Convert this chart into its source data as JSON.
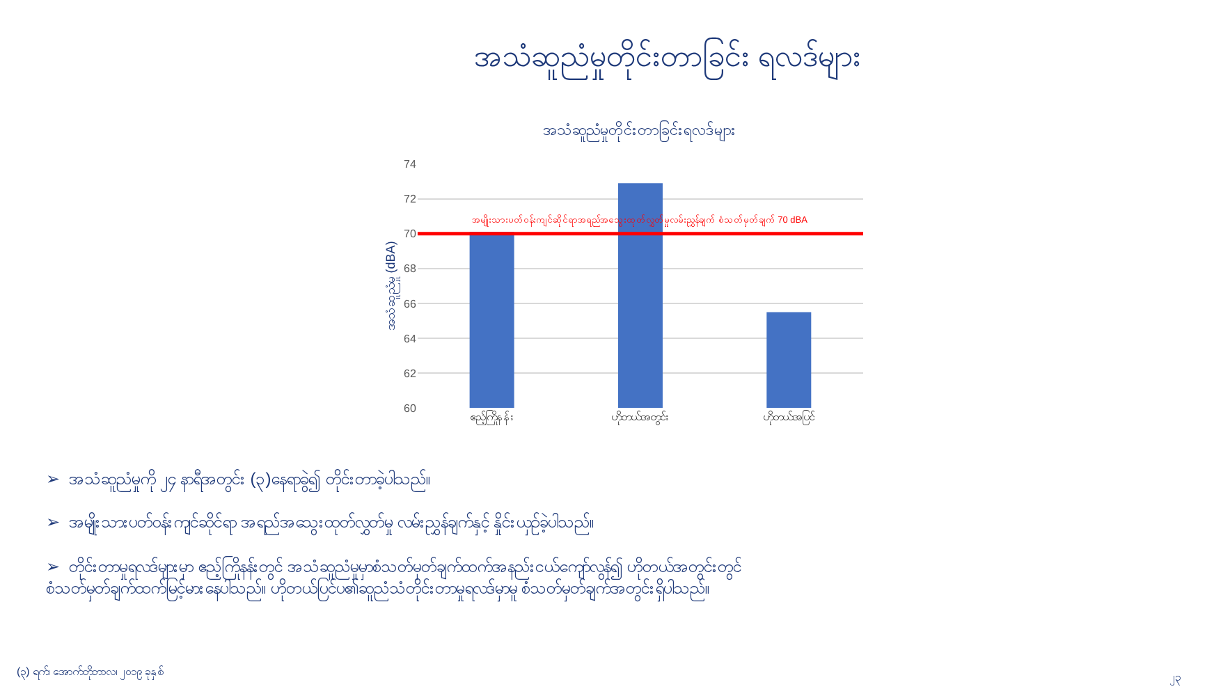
{
  "chart_data": {
    "type": "bar",
    "title": "အသံဆူညံမှုတိုင်းတာခြင်း ရလဒ်များ",
    "subtitle": "အသံဆူညံမှုတိုင်းတာခြင်းရလဒ်များ",
    "ylabel": "အသံဆူညံမှု (dBA)",
    "categories": [
      "ဧည့်ကြိုနန်း",
      "ဟိုတယ်အတွင်း",
      "ဟိုတယ်အပြင်"
    ],
    "values": [
      70.1,
      72.9,
      65.5
    ],
    "color": "#4472c4",
    "ylim": [
      60,
      74
    ],
    "yticks": [
      60,
      62,
      64,
      66,
      68,
      70,
      72,
      74
    ],
    "grid": "y",
    "ref_lines": [
      {
        "axis": "y",
        "value": 70,
        "label": "အမျိုးသားပတ်ဝန်းကျင်ဆိုင်ရာအရည်အသွေးထုတ်လွှတ်မှုလမ်းညွှန်ချက် စံသတ်မှတ်ချက် 70 dBA",
        "color": "#ff0000"
      }
    ],
    "annotations": [
      "➢  အသံဆူညံမှုကို ၂၄ နာရီအတွင်း (၃)နေရာခွဲ၍ တိုင်းတာခဲ့ပါသည်။",
      "➢  အမျိုးသားပတ်ဝန်းကျင်ဆိုင်ရာ အရည်အသွေးထုတ်လွှတ်မှု လမ်းညွှန်ချက်နှင့် နှိုင်းယှဉ်ခဲ့ပါသည်။",
      "➢  တိုင်းတာမှုရလဒ်များမှာ ဧည့်ကြိုနန်းတွင် အသံဆူညံမှုမှာစံသတ်မှတ်ချက်ထက်အနည်းငယ်ကျော်လွန်၍ ဟိုတယ်အတွင်းတွင်\nစံသတ်မှတ်ချက်ထက်မြင့်မားနေပါသည်။ ဟိုတယ်ပြင်ပ၏ဆူညံသံတိုင်းတာမှုရလဒ်မှာမူ စံသတ်မှတ်ချက်အတွင်းရှိပါသည်။",
      "(၃) ရက်၊ အောက်တိုဘာလ၊ ၂၀၁၉ ခုနှစ်",
      "၂၃"
    ]
  }
}
